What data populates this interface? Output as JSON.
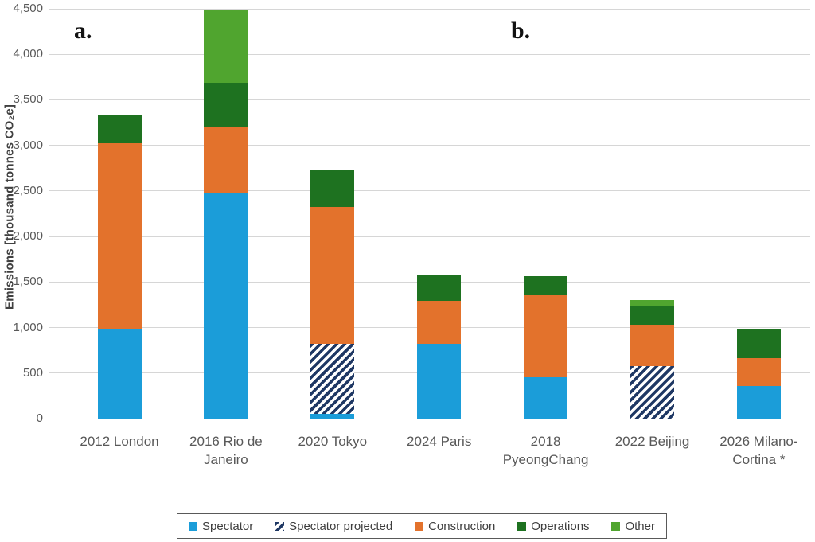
{
  "panel_labels": {
    "a": "a.",
    "b": "b."
  },
  "colors": {
    "spectator_blue": "#1B9DD9",
    "spectator_projected_navy": "#1F3864",
    "construction_orange": "#E3722C",
    "operations_dark_green": "#1E7220",
    "other_light_green": "#50A52F",
    "gridline_gray": "#D6D6D6",
    "axis_text_gray": "#595959",
    "title_text_gray": "#404040",
    "background": "#FFFFFF"
  },
  "legend": {
    "items": [
      "Spectator",
      "Spectator projected",
      "Construction",
      "Operations",
      "Other"
    ]
  },
  "chart_data": {
    "type": "bar",
    "stacked": true,
    "title": "",
    "xlabel": "",
    "ylabel": "Emissions [thousand tonnes CO₂e]",
    "ylim": [
      0,
      4500
    ],
    "ytick_step": 500,
    "ytick_labels": [
      "0",
      "500",
      "1,000",
      "1,500",
      "2,000",
      "2,500",
      "3,000",
      "3,500",
      "4,000",
      "4,500"
    ],
    "grid": true,
    "legend_position": "bottom",
    "panel_a_categories": [
      "2012 London",
      "2016 Rio de Janeiro",
      "2020 Tokyo",
      "2024 Paris"
    ],
    "panel_b_categories": [
      "2018 PyeongChang",
      "2022 Beijing",
      "2026 Milano-Cortina *"
    ],
    "categories": [
      "2012 London",
      "2016 Rio de Janeiro",
      "2020 Tokyo",
      "2024 Paris",
      "2018 PyeongChang",
      "2022 Beijing",
      "2026 Milano-Cortina *"
    ],
    "categories_wrapped": [
      [
        "2012 London"
      ],
      [
        "2016 Rio de",
        "Janeiro"
      ],
      [
        "2020 Tokyo"
      ],
      [
        "2024 Paris"
      ],
      [
        "2018",
        "PyeongChang"
      ],
      [
        "2022 Beijing"
      ],
      [
        "2026 Milano-",
        "Cortina *"
      ]
    ],
    "series": [
      {
        "name": "Spectator",
        "style": "solid",
        "color": "#1B9DD9",
        "values": [
          990,
          2480,
          50,
          820,
          450,
          0,
          360
        ]
      },
      {
        "name": "Spectator projected",
        "style": "diagonal-hatch",
        "color": "#1F3864",
        "pattern_background": "#FFFFFF",
        "values": [
          0,
          0,
          770,
          0,
          0,
          580,
          0
        ]
      },
      {
        "name": "Construction",
        "style": "solid",
        "color": "#E3722C",
        "values": [
          2030,
          730,
          1500,
          470,
          900,
          450,
          300
        ]
      },
      {
        "name": "Operations",
        "style": "solid",
        "color": "#1E7220",
        "values": [
          310,
          480,
          410,
          290,
          210,
          200,
          330
        ]
      },
      {
        "name": "Other",
        "style": "solid",
        "color": "#50A52F",
        "values": [
          0,
          800,
          0,
          0,
          0,
          70,
          0
        ]
      }
    ],
    "totals": [
      3330,
      4490,
      2730,
      1580,
      1560,
      1300,
      990
    ]
  }
}
